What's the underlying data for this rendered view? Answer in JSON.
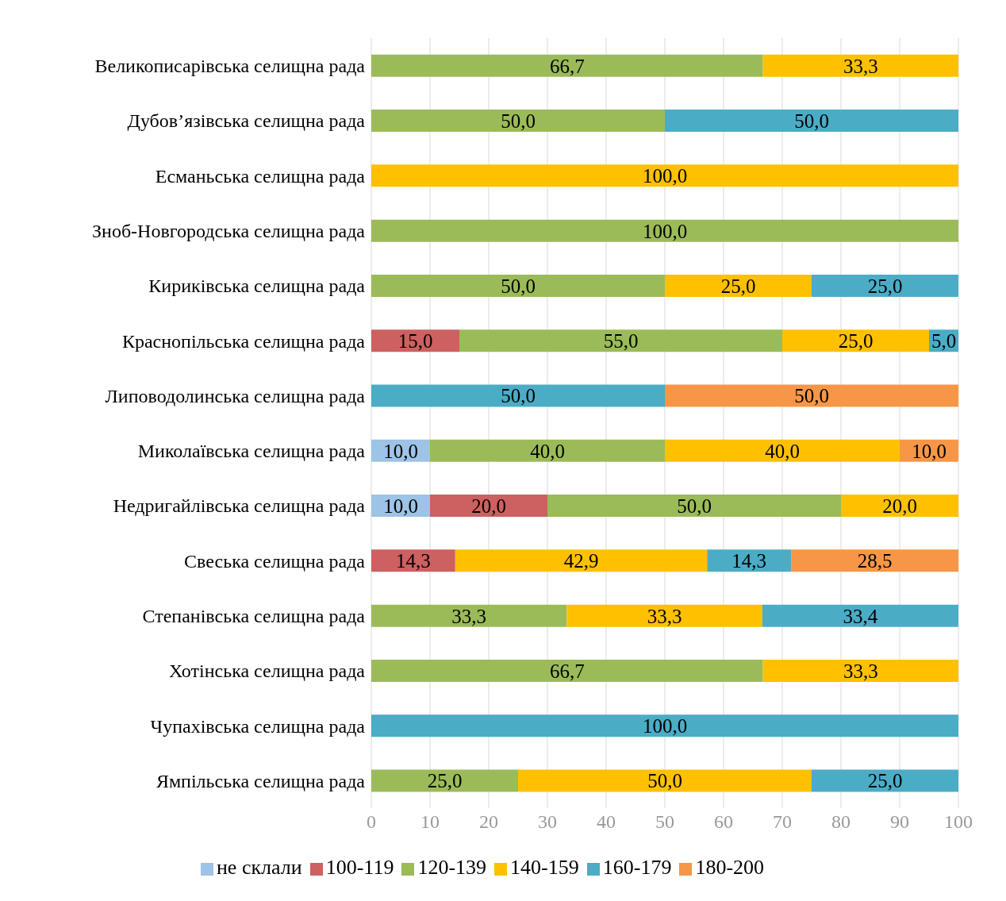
{
  "chart_data": {
    "type": "bar",
    "orientation": "horizontal",
    "stacked": true,
    "categories": [
      "Великописарівська селищна рада",
      "Дубов’язівська селищна рада",
      "Есманьська селищна рада",
      "Зноб-Новгородська селищна рада",
      "Кириківська селищна рада",
      "Краснопільська селищна рада",
      "Липоводолинська селищна рада",
      "Миколаївська селищна рада",
      "Недригайлівська селищна рада",
      "Свеська селищна рада",
      "Степанівська селищна рада",
      "Хотінська селищна рада",
      "Чупахівська селищна рада",
      "Ямпільська селищна рада"
    ],
    "series": [
      {
        "name": "не склали",
        "color": "#9dc3e6",
        "values": [
          null,
          null,
          null,
          null,
          null,
          null,
          null,
          10,
          10,
          null,
          null,
          null,
          null,
          null
        ],
        "value_labels": [
          null,
          null,
          null,
          null,
          null,
          null,
          null,
          "10,0",
          "10,0",
          null,
          null,
          null,
          null,
          null
        ]
      },
      {
        "name": "100-119",
        "color": "#cd6060",
        "values": [
          null,
          null,
          null,
          null,
          null,
          15,
          null,
          null,
          20,
          14.3,
          null,
          null,
          null,
          null
        ],
        "value_labels": [
          null,
          null,
          null,
          null,
          null,
          "15,0",
          null,
          null,
          "20,0",
          "14,3",
          null,
          null,
          null,
          null
        ]
      },
      {
        "name": "120-139",
        "color": "#9bbb59",
        "values": [
          66.7,
          50,
          null,
          100,
          50,
          55,
          null,
          40,
          50,
          null,
          33.3,
          66.7,
          null,
          25
        ],
        "value_labels": [
          "66,7",
          "50,0",
          null,
          "100,0",
          "50,0",
          "55,0",
          null,
          "40,0",
          "50,0",
          null,
          "33,3",
          "66,7",
          null,
          "25,0"
        ]
      },
      {
        "name": "140-159",
        "color": "#ffc000",
        "values": [
          33.3,
          null,
          100,
          null,
          25,
          25,
          null,
          40,
          20,
          42.9,
          33.3,
          33.3,
          null,
          50
        ],
        "value_labels": [
          "33,3",
          null,
          "100,0",
          null,
          "25,0",
          "25,0",
          null,
          "40,0",
          "20,0",
          "42,9",
          "33,3",
          "33,3",
          null,
          "50,0"
        ]
      },
      {
        "name": "160-179",
        "color": "#4bacc6",
        "values": [
          null,
          50,
          null,
          null,
          25,
          5,
          50,
          null,
          null,
          14.3,
          33.4,
          null,
          100,
          25
        ],
        "value_labels": [
          null,
          "50,0",
          null,
          null,
          "25,0",
          "5,0",
          "50,0",
          null,
          null,
          "14,3",
          "33,4",
          null,
          "100,0",
          "25,0"
        ]
      },
      {
        "name": "180-200",
        "color": "#f79646",
        "values": [
          null,
          null,
          null,
          null,
          null,
          null,
          50,
          10,
          null,
          28.5,
          null,
          null,
          null,
          null
        ],
        "value_labels": [
          null,
          null,
          null,
          null,
          null,
          null,
          "50,0",
          "10,0",
          null,
          "28,5",
          null,
          null,
          null,
          null
        ]
      }
    ],
    "xlim": [
      0,
      100
    ],
    "xticks": [
      0,
      10,
      20,
      30,
      40,
      50,
      60,
      70,
      80,
      90,
      100
    ],
    "grid": "x",
    "legend": "bottom"
  }
}
